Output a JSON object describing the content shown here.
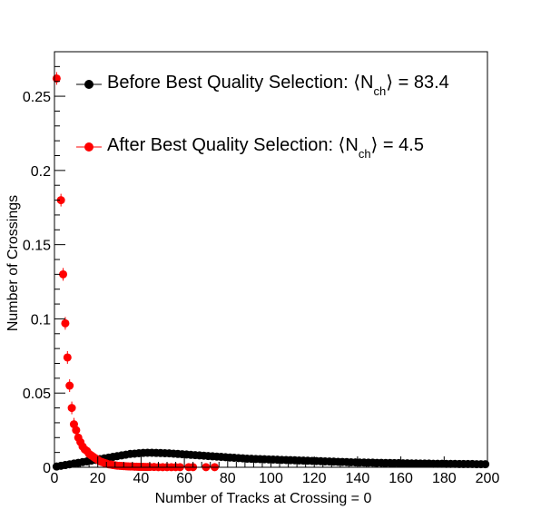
{
  "chart_data": {
    "type": "scatter",
    "xlabel": "Number of Tracks at Crossing = 0",
    "ylabel": "Number of Crossings",
    "xlim": [
      0,
      200
    ],
    "ylim": [
      0,
      0.28
    ],
    "xticks": [
      0,
      20,
      40,
      60,
      80,
      100,
      120,
      140,
      160,
      180,
      200
    ],
    "yticks": [
      0,
      0.05,
      0.1,
      0.15,
      0.2,
      0.25
    ],
    "grid": false,
    "legend_position": "top",
    "series": [
      {
        "name_prefix": "Before Best Quality Selection: ⟨N",
        "name_sub": "ch",
        "name_suffix": "⟩ = 83.4",
        "color": "#000000",
        "points": [
          [
            1,
            0.0005
          ],
          [
            3,
            0.001
          ],
          [
            5,
            0.0015
          ],
          [
            7,
            0.002
          ],
          [
            9,
            0.0025
          ],
          [
            11,
            0.003
          ],
          [
            13,
            0.0035
          ],
          [
            15,
            0.004
          ],
          [
            17,
            0.0045
          ],
          [
            19,
            0.005
          ],
          [
            21,
            0.0055
          ],
          [
            23,
            0.006
          ],
          [
            25,
            0.0065
          ],
          [
            27,
            0.007
          ],
          [
            29,
            0.0075
          ],
          [
            31,
            0.008
          ],
          [
            33,
            0.0085
          ],
          [
            35,
            0.009
          ],
          [
            37,
            0.0092
          ],
          [
            39,
            0.0095
          ],
          [
            41,
            0.0097
          ],
          [
            43,
            0.0098
          ],
          [
            45,
            0.0098
          ],
          [
            47,
            0.0097
          ],
          [
            49,
            0.0096
          ],
          [
            51,
            0.0095
          ],
          [
            53,
            0.0094
          ],
          [
            55,
            0.0092
          ],
          [
            57,
            0.009
          ],
          [
            59,
            0.0088
          ],
          [
            61,
            0.0086
          ],
          [
            63,
            0.0084
          ],
          [
            65,
            0.0082
          ],
          [
            67,
            0.008
          ],
          [
            69,
            0.0078
          ],
          [
            71,
            0.0076
          ],
          [
            73,
            0.0074
          ],
          [
            75,
            0.0072
          ],
          [
            77,
            0.007
          ],
          [
            79,
            0.0068
          ],
          [
            81,
            0.0066
          ],
          [
            83,
            0.0064
          ],
          [
            85,
            0.0062
          ],
          [
            87,
            0.006
          ],
          [
            89,
            0.0058
          ],
          [
            91,
            0.0057
          ],
          [
            93,
            0.0056
          ],
          [
            95,
            0.0055
          ],
          [
            97,
            0.0054
          ],
          [
            99,
            0.0053
          ],
          [
            101,
            0.0052
          ],
          [
            103,
            0.0051
          ],
          [
            105,
            0.005
          ],
          [
            107,
            0.0049
          ],
          [
            109,
            0.0048
          ],
          [
            111,
            0.0047
          ],
          [
            113,
            0.0046
          ],
          [
            115,
            0.0045
          ],
          [
            117,
            0.0044
          ],
          [
            119,
            0.0043
          ],
          [
            121,
            0.0042
          ],
          [
            123,
            0.0041
          ],
          [
            125,
            0.004
          ],
          [
            127,
            0.0039
          ],
          [
            129,
            0.0038
          ],
          [
            131,
            0.0037
          ],
          [
            133,
            0.0036
          ],
          [
            135,
            0.0035
          ],
          [
            137,
            0.0034
          ],
          [
            139,
            0.0033
          ],
          [
            141,
            0.0032
          ],
          [
            143,
            0.0032
          ],
          [
            145,
            0.0031
          ],
          [
            147,
            0.0031
          ],
          [
            149,
            0.003
          ],
          [
            151,
            0.003
          ],
          [
            153,
            0.0029
          ],
          [
            155,
            0.0029
          ],
          [
            157,
            0.0028
          ],
          [
            159,
            0.0028
          ],
          [
            161,
            0.0027
          ],
          [
            163,
            0.0027
          ],
          [
            165,
            0.0026
          ],
          [
            167,
            0.0026
          ],
          [
            169,
            0.0025
          ],
          [
            171,
            0.0025
          ],
          [
            173,
            0.0025
          ],
          [
            175,
            0.0024
          ],
          [
            177,
            0.0024
          ],
          [
            179,
            0.0024
          ],
          [
            181,
            0.0023
          ],
          [
            183,
            0.0023
          ],
          [
            185,
            0.0023
          ],
          [
            187,
            0.0022
          ],
          [
            189,
            0.0022
          ],
          [
            191,
            0.0022
          ],
          [
            193,
            0.0022
          ],
          [
            195,
            0.0021
          ],
          [
            197,
            0.0021
          ],
          [
            199,
            0.0021
          ]
        ]
      },
      {
        "name_prefix": "After Best Quality Selection: ⟨N",
        "name_sub": "ch",
        "name_suffix": "⟩ = 4.5",
        "color": "#ff0000",
        "points": [
          [
            1,
            0.262
          ],
          [
            3,
            0.18
          ],
          [
            4,
            0.13
          ],
          [
            5,
            0.097
          ],
          [
            6,
            0.074
          ],
          [
            7,
            0.055
          ],
          [
            8,
            0.04
          ],
          [
            9,
            0.029
          ],
          [
            10,
            0.025
          ],
          [
            11,
            0.02
          ],
          [
            12,
            0.017
          ],
          [
            13,
            0.014
          ],
          [
            14,
            0.012
          ],
          [
            15,
            0.011
          ],
          [
            16,
            0.009
          ],
          [
            17,
            0.008
          ],
          [
            18,
            0.007
          ],
          [
            19,
            0.006
          ],
          [
            20,
            0.005
          ],
          [
            21,
            0.004
          ],
          [
            22,
            0.0035
          ],
          [
            23,
            0.003
          ],
          [
            24,
            0.0025
          ],
          [
            25,
            0.002
          ],
          [
            26,
            0.0018
          ],
          [
            27,
            0.0015
          ],
          [
            28,
            0.0013
          ],
          [
            29,
            0.0011
          ],
          [
            30,
            0.001
          ],
          [
            31,
            0.0009
          ],
          [
            32,
            0.0008
          ],
          [
            33,
            0.0007
          ],
          [
            34,
            0.0006
          ],
          [
            35,
            0.0005
          ],
          [
            36,
            0.0005
          ],
          [
            37,
            0.0004
          ],
          [
            38,
            0.0004
          ],
          [
            39,
            0.0003
          ],
          [
            40,
            0.0003
          ],
          [
            41,
            0.0003
          ],
          [
            42,
            0.0002
          ],
          [
            43,
            0.0002
          ],
          [
            44,
            0.0002
          ],
          [
            46,
            0.0002
          ],
          [
            48,
            0.0001
          ],
          [
            50,
            0.0001
          ],
          [
            52,
            0.0001
          ],
          [
            54,
            0.0001
          ],
          [
            56,
            0.0001
          ],
          [
            58,
            0.0001
          ],
          [
            62,
            0.0001
          ],
          [
            64,
            0.0001
          ],
          [
            70,
            0.0001
          ],
          [
            74,
            0.0001
          ]
        ]
      }
    ]
  }
}
